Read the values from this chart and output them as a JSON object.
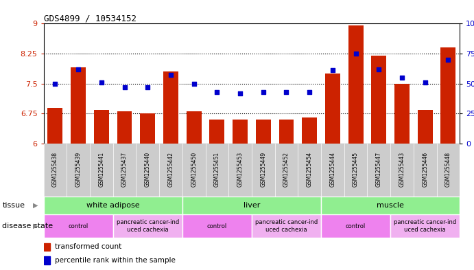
{
  "title": "GDS4899 / 10534152",
  "samples": [
    "GSM1255438",
    "GSM1255439",
    "GSM1255441",
    "GSM1255437",
    "GSM1255440",
    "GSM1255442",
    "GSM1255450",
    "GSM1255451",
    "GSM1255453",
    "GSM1255449",
    "GSM1255452",
    "GSM1255454",
    "GSM1255444",
    "GSM1255445",
    "GSM1255447",
    "GSM1255443",
    "GSM1255446",
    "GSM1255448"
  ],
  "red_values": [
    6.9,
    7.9,
    6.85,
    6.8,
    6.75,
    7.8,
    6.8,
    6.6,
    6.6,
    6.6,
    6.6,
    6.65,
    7.75,
    8.95,
    8.2,
    7.5,
    6.85,
    8.4
  ],
  "blue_values": [
    50,
    62,
    51,
    47,
    47,
    57,
    50,
    43,
    42,
    43,
    43,
    43,
    61,
    75,
    62,
    55,
    51,
    70
  ],
  "ylim_left": [
    6,
    9
  ],
  "ylim_right": [
    0,
    100
  ],
  "yticks_left": [
    6,
    6.75,
    7.5,
    8.25,
    9
  ],
  "yticks_right": [
    0,
    25,
    50,
    75,
    100
  ],
  "tissue_groups": [
    {
      "label": "white adipose",
      "start": 0,
      "end": 6,
      "color": "#90ee90"
    },
    {
      "label": "liver",
      "start": 6,
      "end": 12,
      "color": "#90ee90"
    },
    {
      "label": "muscle",
      "start": 12,
      "end": 18,
      "color": "#90ee90"
    }
  ],
  "disease_groups": [
    {
      "label": "control",
      "start": 0,
      "end": 3,
      "color": "#ee82ee"
    },
    {
      "label": "pancreatic cancer-ind\nuced cachexia",
      "start": 3,
      "end": 6,
      "color": "#f0b0f0"
    },
    {
      "label": "control",
      "start": 6,
      "end": 9,
      "color": "#ee82ee"
    },
    {
      "label": "pancreatic cancer-ind\nuced cachexia",
      "start": 9,
      "end": 12,
      "color": "#f0b0f0"
    },
    {
      "label": "control",
      "start": 12,
      "end": 15,
      "color": "#ee82ee"
    },
    {
      "label": "pancreatic cancer-ind\nuced cachexia",
      "start": 15,
      "end": 18,
      "color": "#f0b0f0"
    }
  ],
  "bar_color": "#cc2200",
  "dot_color": "#0000cc",
  "bg_color": "#ffffff",
  "left_label_color": "#cc2200",
  "right_label_color": "#0000cc",
  "bar_width": 0.65,
  "xtick_bg": "#cccccc",
  "tissue_border": "#ffffff",
  "disease_border": "#ffffff"
}
